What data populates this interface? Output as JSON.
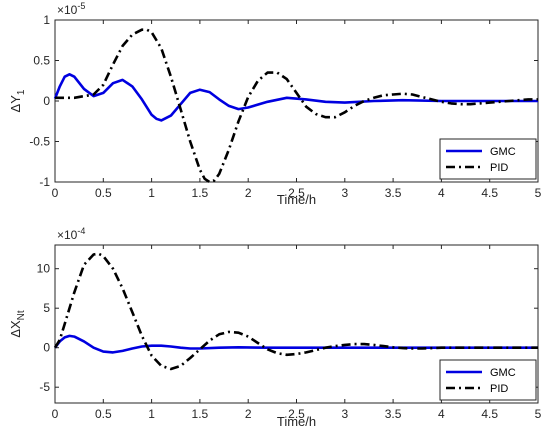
{
  "chart_data": [
    {
      "type": "line",
      "ylabel_main": "ΔY",
      "ylabel_sub": "1",
      "xlabel": "Time/h",
      "exponent_base": "×10",
      "exponent_power": "-5",
      "xlim": [
        0,
        5
      ],
      "ylim": [
        -1,
        1
      ],
      "xticks": [
        0,
        0.5,
        1,
        1.5,
        2,
        2.5,
        3,
        3.5,
        4,
        4.5,
        5
      ],
      "yticks": [
        -1,
        -0.5,
        0,
        0.5,
        1
      ],
      "xtick_labels": [
        "0",
        "0.5",
        "1",
        "1.5",
        "2",
        "2.5",
        "3",
        "3.5",
        "4",
        "4.5",
        "5"
      ],
      "ytick_labels": [
        "-1",
        "-0.5",
        "0",
        "0.5",
        "1"
      ],
      "legend_position": "bottom-right",
      "series": [
        {
          "name": "GMC",
          "color": "#0000e0",
          "style": "solid",
          "x": [
            0,
            0.05,
            0.1,
            0.15,
            0.2,
            0.3,
            0.4,
            0.5,
            0.6,
            0.7,
            0.8,
            0.9,
            1.0,
            1.05,
            1.1,
            1.2,
            1.3,
            1.4,
            1.5,
            1.6,
            1.7,
            1.8,
            1.9,
            2.0,
            2.2,
            2.4,
            2.6,
            2.8,
            3.0,
            3.3,
            3.6,
            4.0,
            4.5,
            5.0
          ],
          "y": [
            0.03,
            0.18,
            0.3,
            0.33,
            0.3,
            0.15,
            0.06,
            0.1,
            0.22,
            0.26,
            0.18,
            0.02,
            -0.17,
            -0.22,
            -0.24,
            -0.18,
            -0.04,
            0.1,
            0.14,
            0.11,
            0.02,
            -0.06,
            -0.1,
            -0.08,
            -0.01,
            0.04,
            0.02,
            -0.01,
            -0.02,
            0.0,
            0.01,
            0.0,
            0.0,
            0.0
          ]
        },
        {
          "name": "PID",
          "color": "#000000",
          "style": "dashdot",
          "x": [
            0,
            0.2,
            0.4,
            0.5,
            0.6,
            0.7,
            0.8,
            0.9,
            0.95,
            1.0,
            1.1,
            1.2,
            1.3,
            1.4,
            1.5,
            1.55,
            1.6,
            1.65,
            1.7,
            1.8,
            1.9,
            2.0,
            2.1,
            2.2,
            2.3,
            2.4,
            2.5,
            2.6,
            2.7,
            2.8,
            2.9,
            3.0,
            3.1,
            3.2,
            3.3,
            3.4,
            3.5,
            3.6,
            3.7,
            3.8,
            3.9,
            4.0,
            4.1,
            4.2,
            4.3,
            4.4,
            4.5,
            4.6,
            4.7,
            4.8,
            4.9,
            5.0
          ],
          "y": [
            0.04,
            0.04,
            0.08,
            0.2,
            0.45,
            0.68,
            0.82,
            0.88,
            0.88,
            0.85,
            0.65,
            0.3,
            -0.1,
            -0.5,
            -0.85,
            -0.96,
            -1.0,
            -0.98,
            -0.9,
            -0.6,
            -0.25,
            0.05,
            0.25,
            0.35,
            0.35,
            0.27,
            0.1,
            -0.07,
            -0.16,
            -0.2,
            -0.2,
            -0.14,
            -0.06,
            0.0,
            0.04,
            0.07,
            0.08,
            0.09,
            0.08,
            0.05,
            0.02,
            -0.01,
            -0.03,
            -0.04,
            -0.04,
            -0.03,
            -0.02,
            -0.01,
            0.0,
            0.01,
            0.02,
            0.02
          ]
        }
      ]
    },
    {
      "type": "line",
      "ylabel_main": "ΔX",
      "ylabel_sub": "Nt",
      "xlabel": "Time/h",
      "exponent_base": "×10",
      "exponent_power": "-4",
      "xlim": [
        0,
        5
      ],
      "ylim": [
        -7,
        13
      ],
      "xticks": [
        0,
        0.5,
        1,
        1.5,
        2,
        2.5,
        3,
        3.5,
        4,
        4.5,
        5
      ],
      "yticks": [
        -5,
        0,
        5,
        10
      ],
      "xtick_labels": [
        "0",
        "0.5",
        "1",
        "1.5",
        "2",
        "2.5",
        "3",
        "3.5",
        "4",
        "4.5",
        "5"
      ],
      "ytick_labels": [
        "-5",
        "0",
        "5",
        "10"
      ],
      "legend_position": "bottom-right",
      "series": [
        {
          "name": "GMC",
          "color": "#0000e0",
          "style": "solid",
          "x": [
            0,
            0.05,
            0.1,
            0.15,
            0.2,
            0.3,
            0.4,
            0.5,
            0.6,
            0.7,
            0.8,
            0.9,
            1.0,
            1.1,
            1.2,
            1.3,
            1.4,
            1.5,
            1.7,
            1.9,
            2.2,
            2.6,
            3.0,
            4.0,
            5.0
          ],
          "y": [
            0,
            0.8,
            1.3,
            1.5,
            1.4,
            0.8,
            0.0,
            -0.5,
            -0.6,
            -0.4,
            -0.1,
            0.15,
            0.25,
            0.25,
            0.15,
            0.0,
            -0.1,
            -0.1,
            0.0,
            0.05,
            0.0,
            0.0,
            0.0,
            0.0,
            0.0
          ]
        },
        {
          "name": "PID",
          "color": "#000000",
          "style": "dashdot",
          "x": [
            0,
            0.05,
            0.1,
            0.2,
            0.3,
            0.4,
            0.45,
            0.5,
            0.6,
            0.7,
            0.8,
            0.9,
            1.0,
            1.1,
            1.2,
            1.3,
            1.4,
            1.5,
            1.6,
            1.7,
            1.8,
            1.9,
            2.0,
            2.1,
            2.2,
            2.3,
            2.4,
            2.5,
            2.6,
            2.7,
            2.8,
            2.9,
            3.0,
            3.1,
            3.2,
            3.3,
            3.4,
            3.5,
            3.6,
            3.7,
            3.8,
            4.0,
            4.5,
            5.0
          ],
          "y": [
            0,
            1.0,
            3.0,
            7.0,
            10.5,
            11.8,
            11.9,
            11.6,
            10.0,
            7.5,
            4.5,
            1.5,
            -1.0,
            -2.3,
            -2.7,
            -2.3,
            -1.3,
            -0.2,
            0.9,
            1.7,
            2.0,
            1.9,
            1.4,
            0.6,
            -0.2,
            -0.7,
            -0.9,
            -0.8,
            -0.6,
            -0.3,
            0.0,
            0.2,
            0.35,
            0.45,
            0.45,
            0.35,
            0.2,
            0.05,
            -0.05,
            -0.1,
            -0.1,
            0.0,
            0.0,
            0.0
          ]
        }
      ]
    }
  ]
}
